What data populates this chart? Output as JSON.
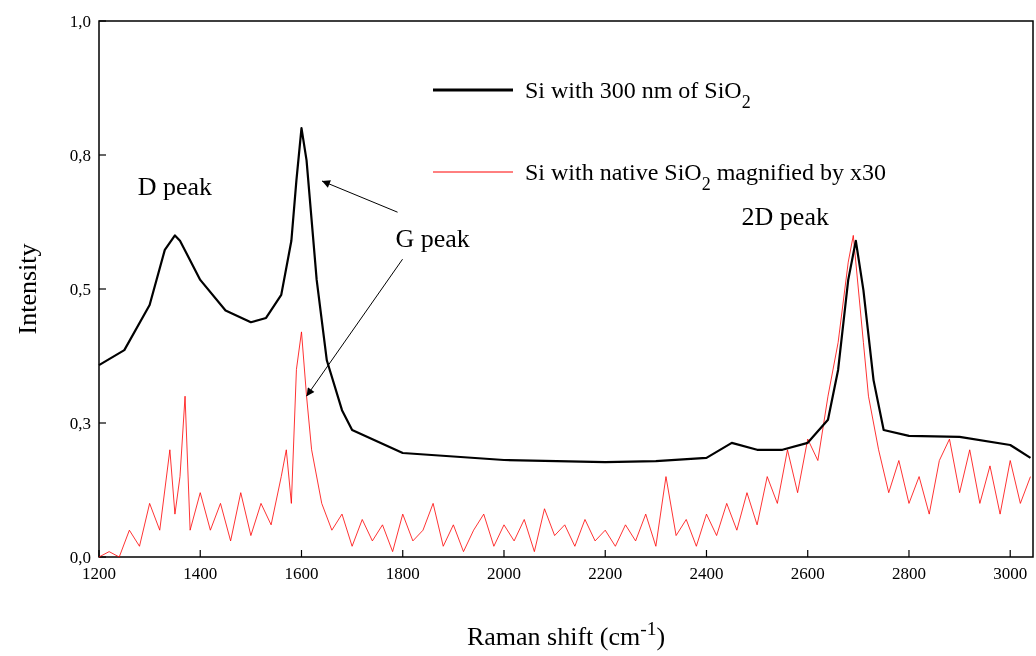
{
  "chart_data": {
    "type": "line",
    "xlabel": "Raman shift (cm$^{-1}$)",
    "ylabel": "Intensity",
    "xlim": [
      1200,
      3045
    ],
    "xticks": [
      1200,
      1400,
      1600,
      1800,
      2000,
      2200,
      2400,
      2600,
      2800,
      3000
    ],
    "ylim": [
      0,
      1
    ],
    "yticks": [
      {
        "value": 0,
        "label": "0,0"
      },
      {
        "value": 0.25,
        "label": "0,3"
      },
      {
        "value": 0.5,
        "label": "0,5"
      },
      {
        "value": 0.75,
        "label": "0,8"
      },
      {
        "value": 1,
        "label": "1,0"
      }
    ],
    "legend": "top right",
    "grid": false,
    "annotations": [
      {
        "text": "D peak",
        "x": 1350,
        "y": 0.6
      },
      {
        "text": "G peak",
        "x": 1610,
        "y": 0.3
      },
      {
        "text": "2D peak",
        "x": 2690,
        "y": 0.6
      }
    ],
    "series": [
      {
        "name": "Si with 300 nm of SiO$_{2}$",
        "color": "#000000",
        "x": [
          1200,
          1250,
          1300,
          1330,
          1350,
          1360,
          1400,
          1450,
          1500,
          1530,
          1560,
          1580,
          1590,
          1600,
          1610,
          1630,
          1650,
          1680,
          1700,
          1800,
          2000,
          2200,
          2300,
          2400,
          2450,
          2500,
          2550,
          2600,
          2640,
          2660,
          2680,
          2695,
          2710,
          2730,
          2750,
          2800,
          2900,
          3000,
          3040
        ],
        "values": [
          0.358,
          0.386,
          0.47,
          0.573,
          0.6,
          0.59,
          0.517,
          0.46,
          0.438,
          0.446,
          0.489,
          0.59,
          0.703,
          0.8,
          0.74,
          0.517,
          0.367,
          0.274,
          0.237,
          0.194,
          0.181,
          0.177,
          0.179,
          0.185,
          0.213,
          0.2,
          0.2,
          0.213,
          0.256,
          0.349,
          0.517,
          0.59,
          0.498,
          0.33,
          0.237,
          0.226,
          0.224,
          0.209,
          0.185
        ]
      },
      {
        "name": "Si with native SiO$_{2}$  magnified by x30",
        "color": "#ff0000",
        "x": [
          1200,
          1220,
          1240,
          1260,
          1280,
          1300,
          1320,
          1340,
          1350,
          1360,
          1370,
          1380,
          1400,
          1420,
          1440,
          1460,
          1480,
          1500,
          1520,
          1540,
          1560,
          1570,
          1580,
          1590,
          1600,
          1610,
          1620,
          1640,
          1660,
          1680,
          1700,
          1720,
          1740,
          1760,
          1780,
          1800,
          1820,
          1840,
          1860,
          1880,
          1900,
          1920,
          1940,
          1960,
          1980,
          2000,
          2020,
          2040,
          2060,
          2080,
          2100,
          2120,
          2140,
          2160,
          2180,
          2200,
          2220,
          2240,
          2260,
          2280,
          2300,
          2320,
          2340,
          2360,
          2380,
          2400,
          2420,
          2440,
          2460,
          2480,
          2500,
          2520,
          2540,
          2560,
          2580,
          2600,
          2620,
          2640,
          2660,
          2680,
          2690,
          2700,
          2710,
          2720,
          2740,
          2760,
          2780,
          2800,
          2820,
          2840,
          2860,
          2880,
          2900,
          2920,
          2940,
          2960,
          2980,
          3000,
          3020,
          3040
        ],
        "values": [
          0,
          0.01,
          0,
          0.05,
          0.02,
          0.1,
          0.05,
          0.2,
          0.08,
          0.15,
          0.3,
          0.05,
          0.12,
          0.05,
          0.1,
          0.03,
          0.12,
          0.04,
          0.1,
          0.06,
          0.15,
          0.2,
          0.1,
          0.35,
          0.42,
          0.3,
          0.2,
          0.1,
          0.05,
          0.08,
          0.02,
          0.07,
          0.03,
          0.06,
          0.01,
          0.08,
          0.03,
          0.05,
          0.1,
          0.02,
          0.06,
          0.01,
          0.05,
          0.08,
          0.02,
          0.06,
          0.03,
          0.07,
          0.01,
          0.09,
          0.04,
          0.06,
          0.02,
          0.07,
          0.03,
          0.05,
          0.02,
          0.06,
          0.03,
          0.08,
          0.02,
          0.15,
          0.04,
          0.07,
          0.02,
          0.08,
          0.04,
          0.1,
          0.05,
          0.12,
          0.06,
          0.15,
          0.1,
          0.2,
          0.12,
          0.22,
          0.18,
          0.3,
          0.4,
          0.55,
          0.6,
          0.5,
          0.4,
          0.3,
          0.2,
          0.12,
          0.18,
          0.1,
          0.15,
          0.08,
          0.18,
          0.22,
          0.12,
          0.2,
          0.1,
          0.17,
          0.08,
          0.18,
          0.1,
          0.15
        ]
      }
    ]
  }
}
